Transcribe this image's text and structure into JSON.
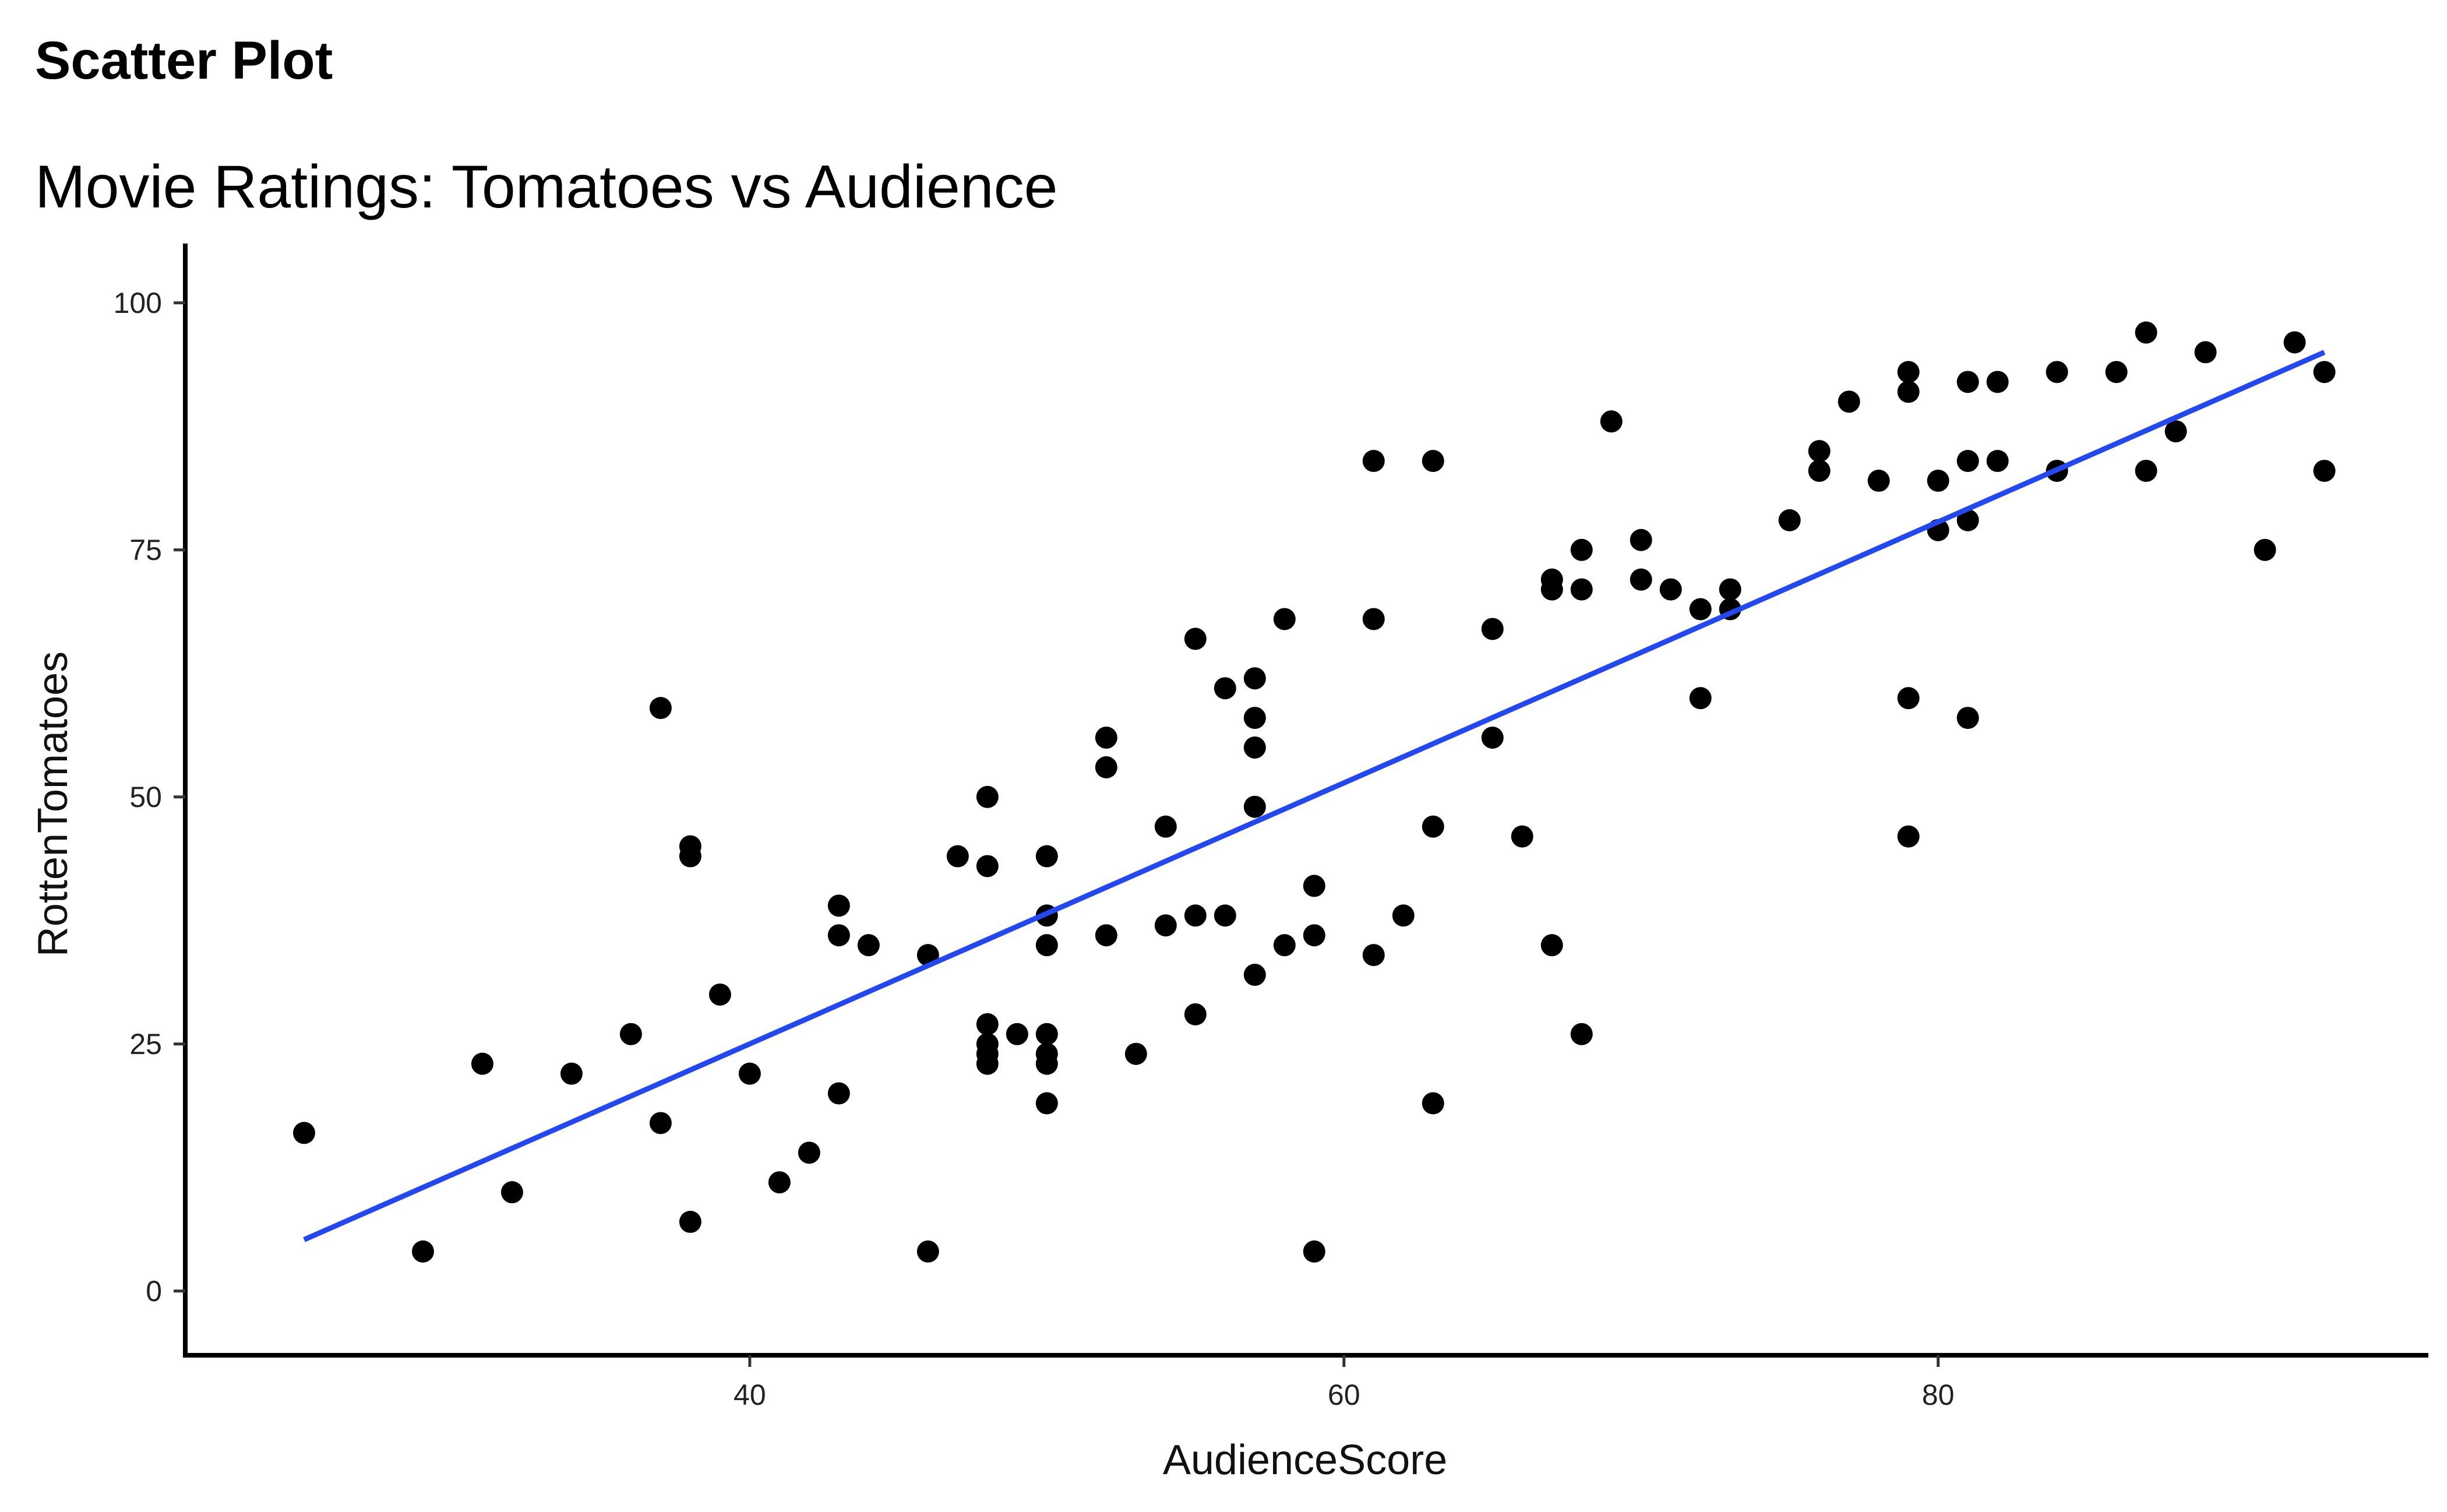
{
  "chart_data": {
    "type": "scatter",
    "title": "Scatter Plot",
    "subtitle": "Movie Ratings: Tomatoes vs Audience",
    "xlabel": "AudienceScore",
    "ylabel": "RottenTomatoes",
    "xlim": [
      21,
      96.5
    ],
    "ylim": [
      -6.5,
      106
    ],
    "xticks": [
      40,
      60,
      80
    ],
    "yticks": [
      0,
      25,
      50,
      75,
      100
    ],
    "grid": false,
    "legend": "none",
    "point_color": "#000000",
    "trend_color": "#2348F0",
    "trendline": {
      "type": "linear",
      "x": [
        25,
        93
      ],
      "y": [
        5.2,
        95
      ]
    },
    "points": [
      [
        25,
        16
      ],
      [
        29,
        4
      ],
      [
        31,
        23
      ],
      [
        32,
        10
      ],
      [
        34,
        22
      ],
      [
        36,
        26
      ],
      [
        37,
        17
      ],
      [
        37,
        59
      ],
      [
        38,
        7
      ],
      [
        38,
        44
      ],
      [
        38,
        45
      ],
      [
        39,
        30
      ],
      [
        40,
        22
      ],
      [
        41,
        11
      ],
      [
        42,
        14
      ],
      [
        43,
        20
      ],
      [
        43,
        36
      ],
      [
        43,
        39
      ],
      [
        44,
        35
      ],
      [
        46,
        4
      ],
      [
        46,
        34
      ],
      [
        47,
        44
      ],
      [
        48,
        50
      ],
      [
        48,
        43
      ],
      [
        48,
        27
      ],
      [
        48,
        25
      ],
      [
        48,
        24
      ],
      [
        48,
        23
      ],
      [
        49,
        26
      ],
      [
        50,
        44
      ],
      [
        50,
        38
      ],
      [
        50,
        35
      ],
      [
        50,
        26
      ],
      [
        50,
        24
      ],
      [
        50,
        23
      ],
      [
        50,
        19
      ],
      [
        52,
        56
      ],
      [
        52,
        53
      ],
      [
        52,
        36
      ],
      [
        53,
        24
      ],
      [
        54,
        47
      ],
      [
        54,
        37
      ],
      [
        55,
        66
      ],
      [
        55,
        38
      ],
      [
        55,
        28
      ],
      [
        56,
        61
      ],
      [
        56,
        38
      ],
      [
        57,
        62
      ],
      [
        57,
        58
      ],
      [
        57,
        55
      ],
      [
        57,
        49
      ],
      [
        57,
        32
      ],
      [
        58,
        68
      ],
      [
        58,
        35
      ],
      [
        59,
        41
      ],
      [
        59,
        36
      ],
      [
        59,
        4
      ],
      [
        61,
        84
      ],
      [
        61,
        68
      ],
      [
        61,
        34
      ],
      [
        62,
        38
      ],
      [
        63,
        84
      ],
      [
        63,
        47
      ],
      [
        63,
        19
      ],
      [
        65,
        67
      ],
      [
        65,
        56
      ],
      [
        66,
        46
      ],
      [
        67,
        72
      ],
      [
        67,
        71
      ],
      [
        67,
        35
      ],
      [
        68,
        75
      ],
      [
        68,
        71
      ],
      [
        68,
        26
      ],
      [
        69,
        88
      ],
      [
        70,
        76
      ],
      [
        70,
        72
      ],
      [
        71,
        71
      ],
      [
        72,
        69
      ],
      [
        72,
        60
      ],
      [
        73,
        71
      ],
      [
        73,
        69
      ],
      [
        75,
        78
      ],
      [
        76,
        85
      ],
      [
        76,
        83
      ],
      [
        77,
        90
      ],
      [
        78,
        82
      ],
      [
        79,
        93
      ],
      [
        79,
        91
      ],
      [
        79,
        60
      ],
      [
        79,
        46
      ],
      [
        80,
        82
      ],
      [
        80,
        77
      ],
      [
        81,
        92
      ],
      [
        81,
        84
      ],
      [
        81,
        78
      ],
      [
        81,
        58
      ],
      [
        82,
        92
      ],
      [
        82,
        84
      ],
      [
        84,
        93
      ],
      [
        84,
        83
      ],
      [
        86,
        93
      ],
      [
        87,
        97
      ],
      [
        87,
        83
      ],
      [
        88,
        87
      ],
      [
        89,
        95
      ],
      [
        91,
        75
      ],
      [
        92,
        96
      ],
      [
        93,
        93
      ],
      [
        93,
        83
      ]
    ]
  }
}
